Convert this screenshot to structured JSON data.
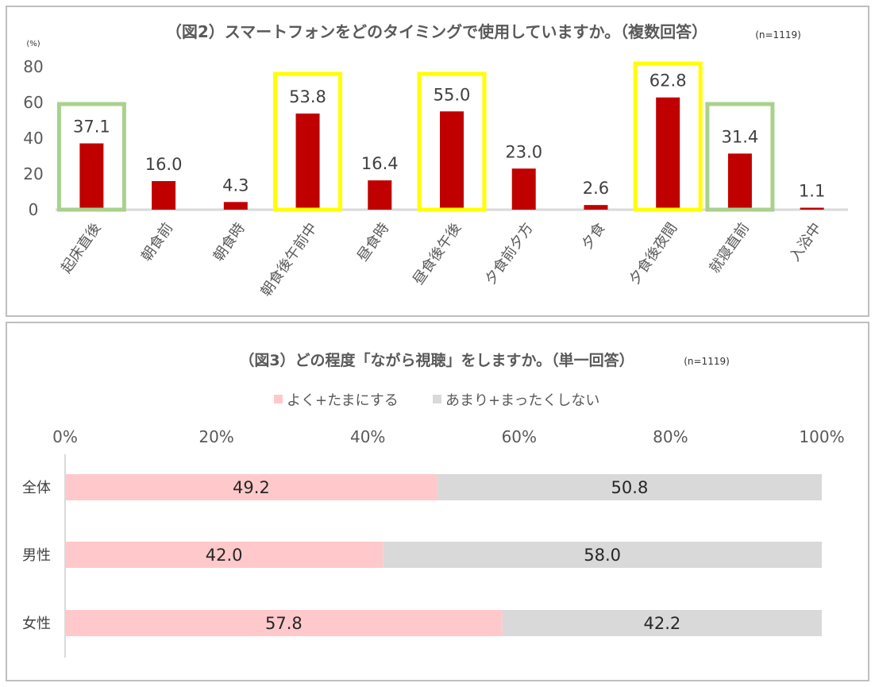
{
  "chart_data": [
    {
      "type": "bar",
      "title": "（図2）スマートフォンをどのタイミングで使用していますか。（複数回答）",
      "note": "(n=1119)",
      "ylabel": "(%)",
      "ylim": [
        0,
        80
      ],
      "yticks": [
        "0",
        "20",
        "40",
        "60",
        "80"
      ],
      "categories": [
        "起床直後",
        "朝食前",
        "朝食時",
        "朝食後午前中",
        "昼食時",
        "昼食後午後",
        "夕食前夕方",
        "夕食",
        "夕食後夜間",
        "就寝直前",
        "入浴中"
      ],
      "values": [
        37.1,
        16.0,
        4.3,
        53.8,
        16.4,
        55.0,
        23.0,
        2.6,
        62.8,
        31.4,
        1.1
      ],
      "value_labels": [
        "37.1",
        "16.0",
        "4.3",
        "53.8",
        "16.4",
        "55.0",
        "23.0",
        "2.6",
        "62.8",
        "31.4",
        "1.1"
      ],
      "highlights": [
        "green",
        "none",
        "none",
        "yellow",
        "none",
        "yellow",
        "none",
        "none",
        "yellow",
        "green",
        "none"
      ],
      "colors": {
        "bar": "#c00000",
        "green": "#a9d18e",
        "yellow": "#ffff00"
      }
    },
    {
      "type": "bar",
      "orientation": "horizontal-stacked-100",
      "title": "（図3）どの程度「ながら視聴」をしますか。（単一回答）",
      "note": "(n=1119)",
      "xlim": [
        0,
        100
      ],
      "xticks": [
        "0%",
        "20%",
        "40%",
        "60%",
        "80%",
        "100%"
      ],
      "categories": [
        "全体",
        "男性",
        "女性"
      ],
      "series": [
        {
          "name": "よく+たまにする",
          "values": [
            49.2,
            42.0,
            57.8
          ],
          "labels": [
            "49.2",
            "42.0",
            "57.8"
          ],
          "color": "#ffc9cb"
        },
        {
          "name": "あまり+まったくしない",
          "values": [
            50.8,
            58.0,
            42.2
          ],
          "labels": [
            "50.8",
            "58.0",
            "42.2"
          ],
          "color": "#d9d9d9"
        }
      ],
      "legend": "top"
    }
  ]
}
